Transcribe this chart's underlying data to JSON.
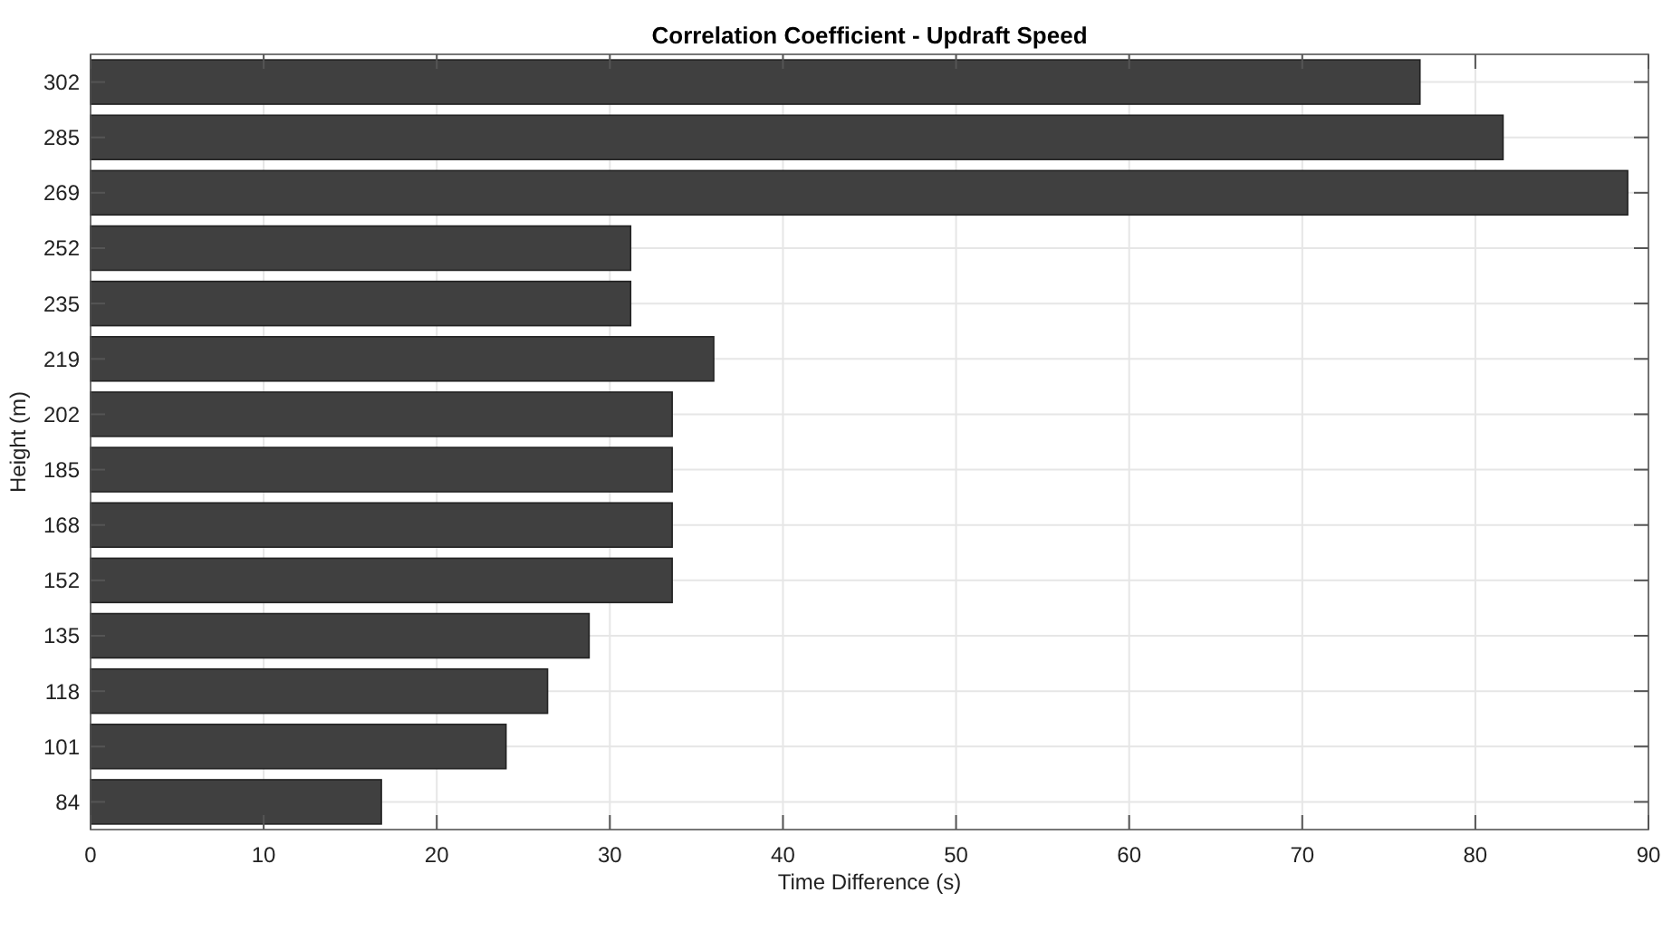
{
  "chart_data": {
    "type": "bar",
    "orientation": "horizontal",
    "title": "Correlation Coefficient - Updraft Speed",
    "xlabel": "Time Difference (s)",
    "ylabel": "Height (m)",
    "categories": [
      "302",
      "285",
      "269",
      "252",
      "235",
      "219",
      "202",
      "185",
      "168",
      "152",
      "135",
      "118",
      "101",
      "84"
    ],
    "values": [
      76.8,
      81.6,
      88.8,
      31.2,
      31.2,
      36,
      33.6,
      33.6,
      33.6,
      33.6,
      28.8,
      26.4,
      24,
      16.8
    ],
    "color": "#404040",
    "xlim": [
      0,
      90
    ],
    "xticks": [
      0,
      10,
      20,
      30,
      40,
      50,
      60,
      70,
      80,
      90
    ],
    "grid": true
  }
}
